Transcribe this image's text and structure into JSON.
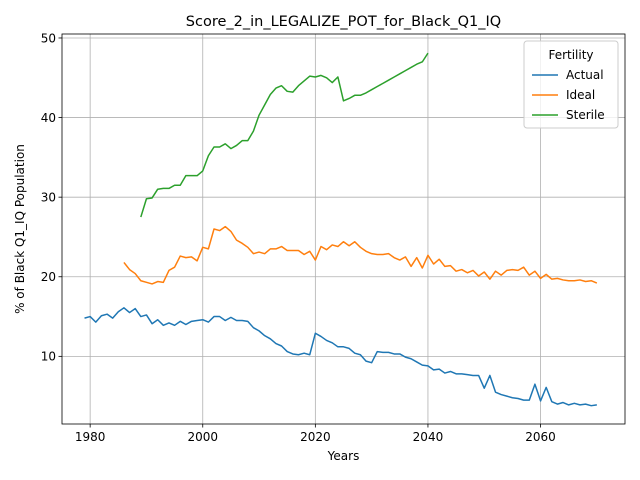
{
  "chart_data": {
    "type": "line",
    "title": "Score_2_in_LEGALIZE_POT_for_Black_Q1_IQ",
    "xlabel": "Years",
    "ylabel": "% of Black Q1_IQ Population",
    "xlim": [
      1975,
      2075
    ],
    "ylim": [
      1.5,
      50.5
    ],
    "xticks": [
      1980,
      2000,
      2020,
      2040,
      2060
    ],
    "yticks": [
      10,
      20,
      30,
      40,
      50
    ],
    "grid": true,
    "legend": {
      "title": "Fertility",
      "placement": "top-right"
    },
    "series": [
      {
        "name": "Actual",
        "color": "#1f77b4",
        "x": [
          1979,
          1980,
          1981,
          1982,
          1983,
          1984,
          1985,
          1986,
          1987,
          1988,
          1989,
          1990,
          1991,
          1992,
          1993,
          1994,
          1995,
          1996,
          1997,
          1998,
          1999,
          2000,
          2001,
          2002,
          2003,
          2004,
          2005,
          2006,
          2007,
          2008,
          2009,
          2010,
          2011,
          2012,
          2013,
          2014,
          2015,
          2016,
          2017,
          2018,
          2019,
          2020,
          2021,
          2022,
          2023,
          2024,
          2025,
          2026,
          2027,
          2028,
          2029,
          2030,
          2031,
          2032,
          2033,
          2034,
          2035,
          2036,
          2037,
          2038,
          2039,
          2040,
          2041,
          2042,
          2043,
          2044,
          2045,
          2046,
          2047,
          2048,
          2049,
          2050,
          2051,
          2052,
          2053,
          2054,
          2055,
          2056,
          2057,
          2058,
          2059,
          2060,
          2061,
          2062,
          2063,
          2064,
          2065,
          2066,
          2067,
          2068,
          2069,
          2070
        ],
        "y": [
          14.8,
          15.0,
          14.3,
          15.1,
          15.3,
          14.8,
          15.6,
          16.1,
          15.5,
          16.0,
          15.0,
          15.2,
          14.1,
          14.6,
          13.9,
          14.2,
          13.9,
          14.4,
          14.0,
          14.4,
          14.5,
          14.6,
          14.3,
          15.0,
          15.0,
          14.5,
          14.9,
          14.5,
          14.5,
          14.4,
          13.6,
          13.2,
          12.6,
          12.2,
          11.6,
          11.3,
          10.6,
          10.3,
          10.2,
          10.4,
          10.2,
          12.9,
          12.5,
          12.0,
          11.7,
          11.2,
          11.2,
          11.0,
          10.4,
          10.2,
          9.4,
          9.2,
          10.6,
          10.5,
          10.5,
          10.3,
          10.3,
          9.9,
          9.7,
          9.3,
          8.9,
          8.8,
          8.3,
          8.4,
          7.9,
          8.1,
          7.8,
          7.8,
          7.7,
          7.6,
          7.6,
          6.0,
          7.6,
          5.5,
          5.2,
          5.0,
          4.8,
          4.7,
          4.5,
          4.5,
          6.5,
          4.4,
          6.1,
          4.3,
          4.0,
          4.2,
          3.9,
          4.1,
          3.9,
          4.0,
          3.8,
          3.9
        ]
      },
      {
        "name": "Ideal",
        "color": "#ff7f0e",
        "x": [
          1986,
          1987,
          1988,
          1989,
          1990,
          1991,
          1992,
          1993,
          1994,
          1995,
          1996,
          1997,
          1998,
          1999,
          2000,
          2001,
          2002,
          2003,
          2004,
          2005,
          2006,
          2007,
          2008,
          2009,
          2010,
          2011,
          2012,
          2013,
          2014,
          2015,
          2016,
          2017,
          2018,
          2019,
          2020,
          2021,
          2022,
          2023,
          2024,
          2025,
          2026,
          2027,
          2028,
          2029,
          2030,
          2031,
          2032,
          2033,
          2034,
          2035,
          2036,
          2037,
          2038,
          2039,
          2040,
          2041,
          2042,
          2043,
          2044,
          2045,
          2046,
          2047,
          2048,
          2049,
          2050,
          2051,
          2052,
          2053,
          2054,
          2055,
          2056,
          2057,
          2058,
          2059,
          2060,
          2061,
          2062,
          2063,
          2064,
          2065,
          2066,
          2067,
          2068,
          2069,
          2070
        ],
        "y": [
          21.8,
          20.9,
          20.4,
          19.5,
          19.3,
          19.1,
          19.4,
          19.3,
          20.8,
          21.2,
          22.6,
          22.4,
          22.5,
          22.0,
          23.7,
          23.5,
          26.0,
          25.8,
          26.3,
          25.7,
          24.6,
          24.2,
          23.7,
          22.9,
          23.1,
          22.9,
          23.5,
          23.5,
          23.8,
          23.3,
          23.3,
          23.3,
          22.8,
          23.2,
          22.1,
          23.8,
          23.4,
          24.0,
          23.8,
          24.4,
          23.9,
          24.4,
          23.7,
          23.2,
          22.9,
          22.8,
          22.8,
          22.9,
          22.4,
          22.1,
          22.5,
          21.3,
          22.4,
          21.1,
          22.7,
          21.6,
          22.2,
          21.3,
          21.4,
          20.7,
          20.9,
          20.5,
          20.8,
          20.1,
          20.6,
          19.7,
          20.7,
          20.2,
          20.8,
          20.9,
          20.8,
          21.2,
          20.2,
          20.7,
          19.8,
          20.3,
          19.7,
          19.8,
          19.6,
          19.5,
          19.5,
          19.6,
          19.4,
          19.5,
          19.2
        ]
      },
      {
        "name": "Sterile",
        "color": "#2ca02c",
        "x": [
          1989,
          1990,
          1991,
          1992,
          1993,
          1994,
          1995,
          1996,
          1997,
          1998,
          1999,
          2000,
          2001,
          2002,
          2003,
          2004,
          2005,
          2006,
          2007,
          2008,
          2009,
          2010,
          2011,
          2012,
          2013,
          2014,
          2015,
          2016,
          2017,
          2018,
          2019,
          2020,
          2021,
          2022,
          2023,
          2024,
          2025,
          2026,
          2027,
          2028,
          2029,
          2030,
          2031,
          2032,
          2033,
          2034,
          2035,
          2036,
          2037,
          2038,
          2039,
          2040
        ],
        "y": [
          27.5,
          29.8,
          29.9,
          31.0,
          31.1,
          31.1,
          31.5,
          31.5,
          32.7,
          32.7,
          32.7,
          33.3,
          35.2,
          36.3,
          36.3,
          36.7,
          36.1,
          36.5,
          37.1,
          37.1,
          38.3,
          40.3,
          41.6,
          42.9,
          43.7,
          44.0,
          43.3,
          43.2,
          44.0,
          44.6,
          45.2,
          45.1,
          45.3,
          45.0,
          44.4,
          45.1,
          42.1,
          42.4,
          42.8,
          42.8,
          43.1,
          43.5,
          43.9,
          44.3,
          44.7,
          45.1,
          45.5,
          45.9,
          46.3,
          46.7,
          47.0,
          48.1
        ]
      }
    ]
  }
}
